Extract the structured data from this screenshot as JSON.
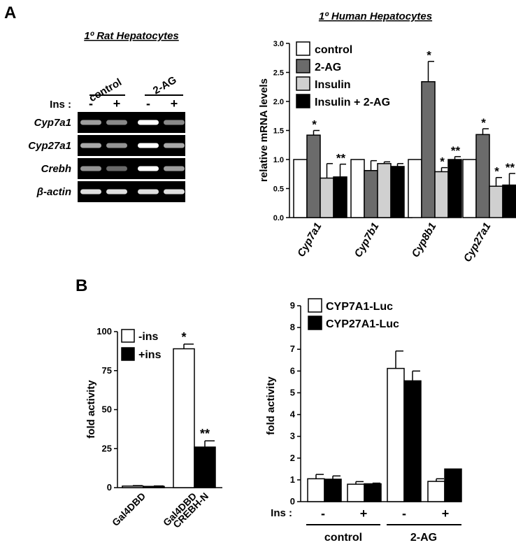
{
  "panel_a": {
    "letter": "A",
    "gel": {
      "title": "1º Rat Hepatocytes",
      "groups": [
        "control",
        "2-AG"
      ],
      "ins_label": "Ins :",
      "ins_signs": [
        "-",
        "+",
        "-",
        "+"
      ],
      "genes": [
        "Cyp7a1",
        "Cyp27a1",
        "Crebh",
        "β-actin"
      ],
      "band_intensity": [
        [
          0.55,
          0.45,
          1.0,
          0.45
        ],
        [
          0.6,
          0.5,
          1.0,
          0.6
        ],
        [
          0.5,
          0.3,
          1.0,
          0.55
        ],
        [
          0.85,
          0.85,
          0.85,
          0.85
        ]
      ]
    }
  },
  "panel_b": {
    "letter": "B"
  },
  "chart_data": [
    {
      "id": "human_hepatocytes",
      "type": "bar",
      "title": "1º Human Hepatocytes",
      "ylabel": "relative mRNA levels",
      "ylim": [
        0,
        3.0
      ],
      "yticks": [
        "0.0",
        "0.5",
        "1.0",
        "1.5",
        "2.0",
        "2.5",
        "3.0"
      ],
      "categories": [
        "Cyp7a1",
        "Cyp7b1",
        "Cyp8b1",
        "Cyp27a1"
      ],
      "legend": [
        "control",
        "2-AG",
        "Insulin",
        "Insulin + 2-AG"
      ],
      "colors": [
        "#ffffff",
        "#6b6b6b",
        "#d0d0d0",
        "#000000"
      ],
      "series": [
        {
          "name": "control",
          "values": [
            1.0,
            1.0,
            1.0,
            1.0
          ],
          "errors": [
            0,
            0,
            0,
            0
          ],
          "marks": [
            "",
            "",
            "",
            ""
          ]
        },
        {
          "name": "2-AG",
          "values": [
            1.42,
            0.81,
            2.34,
            1.43
          ],
          "errors": [
            0.08,
            0.17,
            0.35,
            0.1
          ],
          "marks": [
            "*",
            "",
            "*",
            "*"
          ]
        },
        {
          "name": "Insulin",
          "values": [
            0.68,
            0.93,
            0.79,
            0.54
          ],
          "errors": [
            0.25,
            0.03,
            0.07,
            0.15
          ],
          "marks": [
            "",
            "",
            "*",
            "*"
          ]
        },
        {
          "name": "Insulin + 2-AG",
          "values": [
            0.7,
            0.88,
            1.0,
            0.56
          ],
          "errors": [
            0.22,
            0.05,
            0.05,
            0.2
          ],
          "marks": [
            "**",
            "",
            "**",
            "**"
          ]
        }
      ]
    },
    {
      "id": "gal4",
      "type": "bar",
      "ylabel": "fold activity",
      "ylim": [
        0,
        100
      ],
      "yticks": [
        "0",
        "25",
        "50",
        "75",
        "100"
      ],
      "categories": [
        "Gal4DBD",
        "Gal4DBD CREBH-N"
      ],
      "category_lines": [
        [
          "Gal4DBD"
        ],
        [
          "Gal4DBD",
          "CREBH-N"
        ]
      ],
      "legend": [
        "-ins",
        "+ins"
      ],
      "colors": [
        "#ffffff",
        "#000000"
      ],
      "series": [
        {
          "name": "-ins",
          "values": [
            1.0,
            89.0
          ],
          "errors": [
            0.3,
            3.0
          ],
          "marks": [
            "",
            "*"
          ]
        },
        {
          "name": "+ins",
          "values": [
            0.8,
            26.0
          ],
          "errors": [
            0.3,
            4.0
          ],
          "marks": [
            "",
            "**"
          ]
        }
      ]
    },
    {
      "id": "luciferase",
      "type": "bar",
      "ylabel": "fold activity",
      "ylim": [
        0,
        9
      ],
      "yticks": [
        "0",
        "1",
        "2",
        "3",
        "4",
        "5",
        "6",
        "7",
        "8",
        "9"
      ],
      "categories": [
        "control -",
        "control +",
        "2-AG -",
        "2-AG +"
      ],
      "ins_label": "Ins :",
      "ins_signs": [
        "-",
        "+",
        "-",
        "+"
      ],
      "groups": [
        "control",
        "2-AG"
      ],
      "legend": [
        "CYP7A1-Luc",
        "CYP27A1-Luc"
      ],
      "colors": [
        "#ffffff",
        "#000000"
      ],
      "series": [
        {
          "name": "CYP7A1-Luc",
          "values": [
            1.05,
            0.8,
            6.12,
            0.93
          ],
          "errors": [
            0.2,
            0.12,
            0.8,
            0.12
          ]
        },
        {
          "name": "CYP27A1-Luc",
          "values": [
            1.03,
            0.82,
            5.55,
            1.5
          ],
          "errors": [
            0.15,
            0.03,
            0.45,
            0.0
          ]
        }
      ]
    }
  ]
}
